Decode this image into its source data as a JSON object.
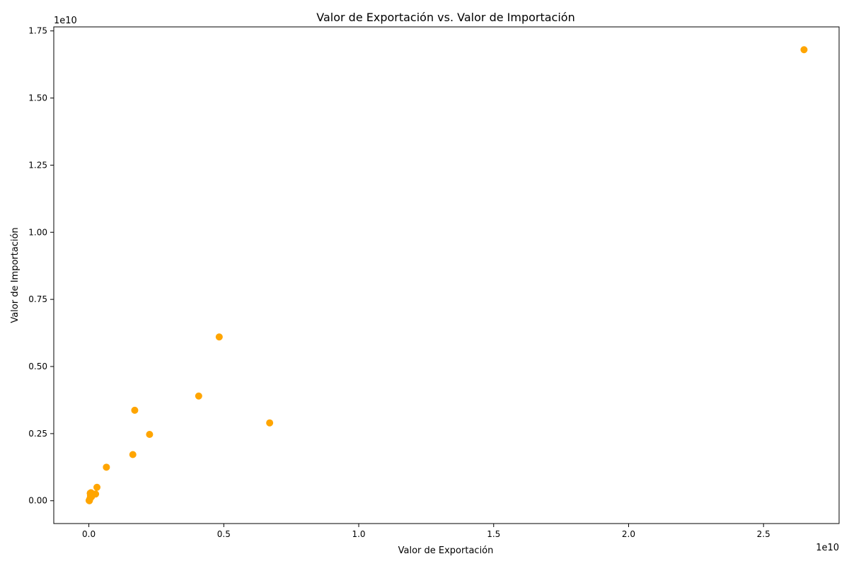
{
  "chart_data": {
    "type": "scatter",
    "title": "Valor de Exportación vs. Valor de Importación",
    "xlabel": "Valor de Exportación",
    "ylabel": "Valor de Importación",
    "x_offset_label": "1e10",
    "y_offset_label": "1e10",
    "xlim": [
      -1300000000.0,
      27800000000.0
    ],
    "ylim": [
      -850000000.0,
      17650000000.0
    ],
    "xticks": [
      0,
      5000000000.0,
      10000000000.0,
      15000000000.0,
      20000000000.0,
      25000000000.0
    ],
    "xtick_labels": [
      "0.0",
      "0.5",
      "1.0",
      "1.5",
      "2.0",
      "2.5"
    ],
    "yticks": [
      0,
      2500000000.0,
      5000000000.0,
      7500000000.0,
      10000000000.0,
      12500000000.0,
      15000000000.0,
      17500000000.0
    ],
    "ytick_labels": [
      "0.00",
      "0.25",
      "0.50",
      "0.75",
      "1.00",
      "1.25",
      "1.50",
      "1.75"
    ],
    "grid": false,
    "color": "#ffa500",
    "points": [
      {
        "x": 26500000000.0,
        "y": 16800000000.0
      },
      {
        "x": 4830000000.0,
        "y": 6100000000.0
      },
      {
        "x": 4070000000.0,
        "y": 3900000000.0
      },
      {
        "x": 6700000000.0,
        "y": 2900000000.0
      },
      {
        "x": 1700000000.0,
        "y": 3370000000.0
      },
      {
        "x": 2250000000.0,
        "y": 2470000000.0
      },
      {
        "x": 1630000000.0,
        "y": 1720000000.0
      },
      {
        "x": 650000000.0,
        "y": 1250000000.0
      },
      {
        "x": 300000000.0,
        "y": 500000000.0
      },
      {
        "x": 250000000.0,
        "y": 250000000.0
      },
      {
        "x": 150000000.0,
        "y": 250000000.0
      },
      {
        "x": 80000000.0,
        "y": 300000000.0
      },
      {
        "x": 50000000.0,
        "y": 280000000.0
      },
      {
        "x": 100000000.0,
        "y": 150000000.0
      },
      {
        "x": 50000000.0,
        "y": 100000000.0
      },
      {
        "x": 30000000.0,
        "y": 50000000.0
      },
      {
        "x": 10000000.0,
        "y": 10000000.0
      },
      {
        "x": 20000000.0,
        "y": 0.0
      },
      {
        "x": 60000000.0,
        "y": 200000000.0
      }
    ]
  }
}
